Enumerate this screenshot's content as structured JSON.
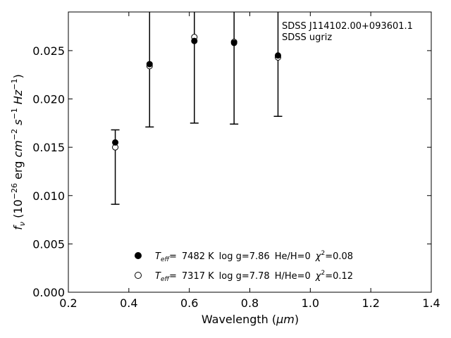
{
  "chart_data": {
    "type": "scatter",
    "annotation": {
      "line1": "SDSS J114102.00+093601.1",
      "line2": "SDSS ugriz",
      "position": "top-right"
    },
    "xlabel": {
      "text": "Wavelength (",
      "unit": "μm",
      "close": ")"
    },
    "ylabel": {
      "prefix": "f",
      "prefix_sub": "ν",
      "open": " (10",
      "exp1": "−26",
      "unit1": " erg ",
      "unit2": "cm",
      "exp2": "−2",
      "unit3": " s",
      "exp3": "−1",
      "unit4": " Hz",
      "exp4": "−1",
      "close": ")"
    },
    "xlim": [
      0.2,
      1.4
    ],
    "ylim": [
      0.0,
      0.029
    ],
    "x_ticks": [
      0.2,
      0.4,
      0.6,
      0.8,
      1.0,
      1.2,
      1.4
    ],
    "x_tick_labels": [
      "0.2",
      "0.4",
      "0.6",
      "0.8",
      "1.0",
      "1.2",
      "1.4"
    ],
    "y_ticks": [
      0.0,
      0.005,
      0.01,
      0.015,
      0.02,
      0.025
    ],
    "y_tick_labels": [
      "0.000",
      "0.005",
      "0.010",
      "0.015",
      "0.020",
      "0.025"
    ],
    "grid": false,
    "legend_position": "bottom-center",
    "observed": {
      "x": [
        0.3551,
        0.4686,
        0.6166,
        0.748,
        0.8932
      ],
      "y": [
        0.0155,
        0.0236,
        0.026,
        0.0259,
        0.0246
      ],
      "err_low": [
        0.0091,
        0.0171,
        0.0175,
        0.0174,
        0.0182
      ],
      "err_high": [
        0.0168,
        0.03,
        0.03,
        0.03,
        0.03
      ]
    },
    "series": [
      {
        "marker": "filled",
        "teff_value": "7482 K",
        "logg": "log g=7.86",
        "comp": "He/H=0",
        "chi_val": "=0.08",
        "x": [
          0.3551,
          0.4686,
          0.6166,
          0.748,
          0.8932
        ],
        "y": [
          0.0155,
          0.0236,
          0.026,
          0.0258,
          0.0245
        ]
      },
      {
        "marker": "open",
        "teff_value": "7317 K",
        "logg": "log g=7.78",
        "comp": "H/He=0",
        "chi_val": "=0.12",
        "x": [
          0.3551,
          0.4686,
          0.6166,
          0.748,
          0.8932
        ],
        "y": [
          0.015,
          0.0234,
          0.0264,
          0.0259,
          0.0243
        ]
      }
    ],
    "legend_labels": {
      "teff_main": "T",
      "teff_sub": "eff",
      "teff_eq": "=",
      "chi": "χ",
      "chi_sup": "2"
    }
  }
}
